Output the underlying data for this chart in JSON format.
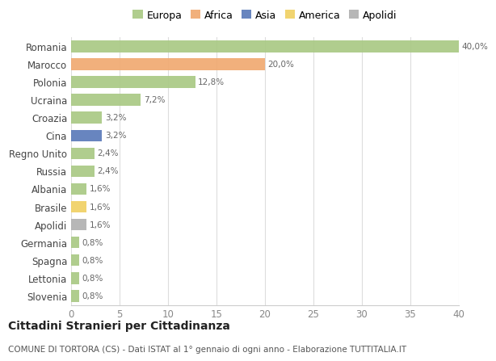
{
  "categories": [
    "Romania",
    "Marocco",
    "Polonia",
    "Ucraina",
    "Croazia",
    "Cina",
    "Regno Unito",
    "Russia",
    "Albania",
    "Brasile",
    "Apolidi",
    "Germania",
    "Spagna",
    "Lettonia",
    "Slovenia"
  ],
  "values": [
    40.0,
    20.0,
    12.8,
    7.2,
    3.2,
    3.2,
    2.4,
    2.4,
    1.6,
    1.6,
    1.6,
    0.8,
    0.8,
    0.8,
    0.8
  ],
  "labels": [
    "40,0%",
    "20,0%",
    "12,8%",
    "7,2%",
    "3,2%",
    "3,2%",
    "2,4%",
    "2,4%",
    "1,6%",
    "1,6%",
    "1,6%",
    "0,8%",
    "0,8%",
    "0,8%",
    "0,8%"
  ],
  "bar_colors": {
    "Romania": "#a8c882",
    "Marocco": "#f0a86e",
    "Polonia": "#a8c882",
    "Ucraina": "#a8c882",
    "Croazia": "#a8c882",
    "Cina": "#5878b8",
    "Regno Unito": "#a8c882",
    "Russia": "#a8c882",
    "Albania": "#a8c882",
    "Brasile": "#f0d060",
    "Apolidi": "#b0b0b0",
    "Germania": "#a8c882",
    "Spagna": "#a8c882",
    "Lettonia": "#a8c882",
    "Slovenia": "#a8c882"
  },
  "legend_labels": [
    "Europa",
    "Africa",
    "Asia",
    "America",
    "Apolidi"
  ],
  "legend_colors": [
    "#a8c882",
    "#f0a86e",
    "#5878b8",
    "#f0d060",
    "#b0b0b0"
  ],
  "title": "Cittadini Stranieri per Cittadinanza",
  "subtitle": "COMUNE DI TORTORA (CS) - Dati ISTAT al 1° gennaio di ogni anno - Elaborazione TUTTITALIA.IT",
  "xlim": [
    0,
    40
  ],
  "xticks": [
    0,
    5,
    10,
    15,
    20,
    25,
    30,
    35,
    40
  ],
  "bg_color": "#ffffff",
  "grid_color": "#dddddd",
  "bar_height": 0.65
}
